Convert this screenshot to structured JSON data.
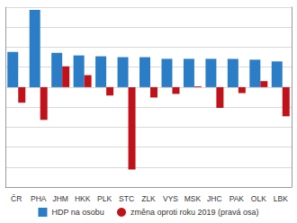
{
  "chart_data": {
    "type": "bar",
    "categories": [
      "ČR",
      "PHA",
      "JHM",
      "HKK",
      "PLK",
      "STC",
      "ZLK",
      "VYS",
      "MSK",
      "JHC",
      "PAK",
      "OLK",
      "LBK"
    ],
    "series": [
      {
        "name": "HDP na osobu",
        "color": "#2b7dc6",
        "marker": "square",
        "values": [
          528,
          1159,
          515,
          476,
          463,
          450,
          450,
          425,
          425,
          425,
          425,
          412,
          386
        ]
      },
      {
        "name": "změna oproti roku 2019 (pravá osa)",
        "color": "#c0121b",
        "marker": "circle",
        "axis": "y2",
        "values": [
          -3.9,
          -8.2,
          5.2,
          3.0,
          -2.1,
          -20.6,
          -2.6,
          -1.7,
          0.2,
          -5.2,
          -1.5,
          1.5,
          -7.3
        ]
      }
    ],
    "ylim": [
      -1500,
      1200
    ],
    "yticks": [
      -1500,
      -1200,
      -900,
      -600,
      -300,
      0,
      300,
      600,
      900,
      1200
    ],
    "y2lim": [
      -25,
      20
    ],
    "y2ticks": [
      -25,
      -20,
      -15,
      -10,
      -5,
      0,
      5,
      10,
      15,
      20
    ],
    "grid": true,
    "legend": "bottom",
    "tick_labels": "x"
  }
}
